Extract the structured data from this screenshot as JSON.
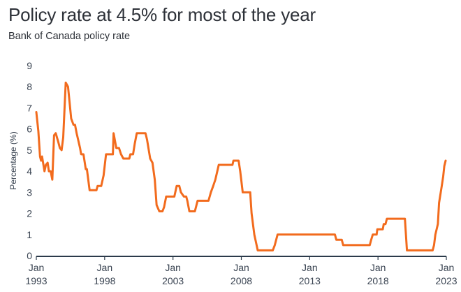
{
  "chart_data": {
    "type": "line",
    "title": "Policy rate at 4.5% for most of the year",
    "subtitle": "Bank of Canada policy rate",
    "xlabel": "",
    "ylabel": "Percentage (%)",
    "ylim": [
      0,
      9
    ],
    "xlim": [
      1993.0,
      2023.0
    ],
    "yticks": [
      "0",
      "1",
      "2",
      "3",
      "4",
      "5",
      "6",
      "7",
      "8",
      "9"
    ],
    "xticks": [
      {
        "year": 1993,
        "line1": "Jan",
        "line2": "1993"
      },
      {
        "year": 1998,
        "line1": "Jan",
        "line2": "1998"
      },
      {
        "year": 2003,
        "line1": "Jan",
        "line2": "2003"
      },
      {
        "year": 2008,
        "line1": "Jan",
        "line2": "2008"
      },
      {
        "year": 2013,
        "line1": "Jan",
        "line2": "2013"
      },
      {
        "year": 2018,
        "line1": "Jan",
        "line2": "2018"
      },
      {
        "year": 2023,
        "line1": "Jan",
        "line2": "2023"
      }
    ],
    "grid": false,
    "series": [
      {
        "name": "Bank of Canada policy rate",
        "color": "#f26b1d",
        "points": [
          [
            1993.0,
            6.8
          ],
          [
            1993.15,
            5.9
          ],
          [
            1993.27,
            4.7
          ],
          [
            1993.35,
            4.5
          ],
          [
            1993.42,
            4.7
          ],
          [
            1993.6,
            4.0
          ],
          [
            1993.7,
            4.3
          ],
          [
            1993.83,
            4.4
          ],
          [
            1993.92,
            4.0
          ],
          [
            1994.05,
            4.0
          ],
          [
            1994.17,
            3.6
          ],
          [
            1994.3,
            5.7
          ],
          [
            1994.42,
            5.8
          ],
          [
            1994.6,
            5.4
          ],
          [
            1994.72,
            5.1
          ],
          [
            1994.85,
            5.0
          ],
          [
            1994.97,
            5.6
          ],
          [
            1995.15,
            8.2
          ],
          [
            1995.32,
            8.0
          ],
          [
            1995.55,
            6.5
          ],
          [
            1995.72,
            6.2
          ],
          [
            1995.83,
            6.2
          ],
          [
            1995.95,
            5.8
          ],
          [
            1996.2,
            5.1
          ],
          [
            1996.28,
            4.8
          ],
          [
            1996.45,
            4.8
          ],
          [
            1996.62,
            4.1
          ],
          [
            1996.7,
            4.1
          ],
          [
            1996.9,
            3.1
          ],
          [
            1997.4,
            3.1
          ],
          [
            1997.48,
            3.3
          ],
          [
            1997.75,
            3.3
          ],
          [
            1997.92,
            3.8
          ],
          [
            1998.1,
            4.8
          ],
          [
            1998.6,
            4.8
          ],
          [
            1998.65,
            5.8
          ],
          [
            1998.85,
            5.1
          ],
          [
            1999.05,
            5.1
          ],
          [
            1999.2,
            4.8
          ],
          [
            1999.37,
            4.6
          ],
          [
            1999.8,
            4.6
          ],
          [
            1999.88,
            4.8
          ],
          [
            2000.08,
            4.8
          ],
          [
            2000.2,
            5.3
          ],
          [
            2000.35,
            5.8
          ],
          [
            2000.99,
            5.8
          ],
          [
            2001.1,
            5.5
          ],
          [
            2001.33,
            4.6
          ],
          [
            2001.5,
            4.4
          ],
          [
            2001.67,
            3.6
          ],
          [
            2001.8,
            2.4
          ],
          [
            2002.0,
            2.1
          ],
          [
            2002.23,
            2.1
          ],
          [
            2002.35,
            2.3
          ],
          [
            2002.5,
            2.8
          ],
          [
            2003.1,
            2.8
          ],
          [
            2003.27,
            3.3
          ],
          [
            2003.46,
            3.3
          ],
          [
            2003.58,
            3.0
          ],
          [
            2003.8,
            2.8
          ],
          [
            2003.97,
            2.8
          ],
          [
            2004.05,
            2.6
          ],
          [
            2004.2,
            2.1
          ],
          [
            2004.6,
            2.1
          ],
          [
            2004.8,
            2.6
          ],
          [
            2005.6,
            2.6
          ],
          [
            2005.77,
            3.0
          ],
          [
            2005.94,
            3.3
          ],
          [
            2006.1,
            3.6
          ],
          [
            2006.35,
            4.3
          ],
          [
            2007.35,
            4.3
          ],
          [
            2007.42,
            4.5
          ],
          [
            2007.8,
            4.5
          ],
          [
            2007.92,
            4.0
          ],
          [
            2008.1,
            3.0
          ],
          [
            2008.65,
            3.0
          ],
          [
            2008.75,
            2.0
          ],
          [
            2008.95,
            1.0
          ],
          [
            2009.2,
            0.25
          ],
          [
            2010.3,
            0.25
          ],
          [
            2010.45,
            0.5
          ],
          [
            2010.55,
            0.75
          ],
          [
            2010.65,
            1.0
          ],
          [
            2014.85,
            1.0
          ],
          [
            2014.95,
            0.75
          ],
          [
            2015.35,
            0.75
          ],
          [
            2015.45,
            0.5
          ],
          [
            2017.4,
            0.5
          ],
          [
            2017.5,
            0.75
          ],
          [
            2017.62,
            1.0
          ],
          [
            2017.9,
            1.0
          ],
          [
            2017.95,
            1.25
          ],
          [
            2018.35,
            1.25
          ],
          [
            2018.42,
            1.5
          ],
          [
            2018.55,
            1.5
          ],
          [
            2018.65,
            1.75
          ],
          [
            2019.97,
            1.75
          ],
          [
            2020.12,
            0.25
          ],
          [
            2022.0,
            0.25
          ],
          [
            2022.1,
            0.5
          ],
          [
            2022.2,
            1.0
          ],
          [
            2022.38,
            1.5
          ],
          [
            2022.47,
            2.5
          ],
          [
            2022.65,
            3.25
          ],
          [
            2022.77,
            3.75
          ],
          [
            2022.85,
            4.25
          ],
          [
            2022.95,
            4.5
          ]
        ]
      }
    ]
  }
}
